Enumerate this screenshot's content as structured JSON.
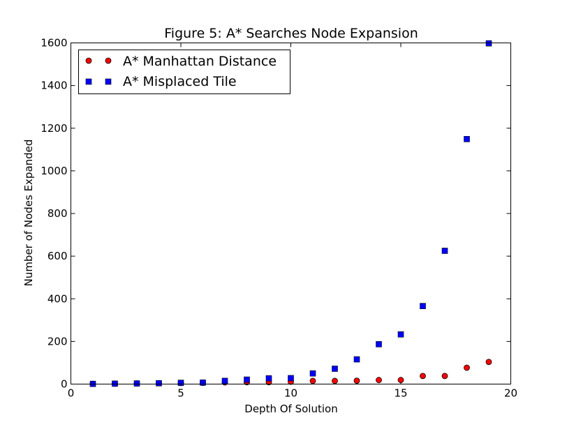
{
  "chart_data": {
    "type": "scatter",
    "title": "Figure 5: A* Searches Node Expansion",
    "xlabel": "Depth Of Solution",
    "ylabel": "Number of Nodes Expanded",
    "xlim": [
      0,
      20
    ],
    "ylim": [
      0,
      1600
    ],
    "xticks": [
      0,
      5,
      10,
      15,
      20
    ],
    "yticks": [
      0,
      200,
      400,
      600,
      800,
      1000,
      1200,
      1400,
      1600
    ],
    "grid": false,
    "legend_position": "top-left",
    "series": [
      {
        "name": "A* Manhattan Distance",
        "marker": "circle",
        "color": "#ff0000",
        "x": [
          1,
          2,
          3,
          4,
          5,
          6,
          7,
          8,
          9,
          10,
          11,
          12,
          13,
          14,
          15,
          16,
          17,
          18,
          19
        ],
        "y": [
          1,
          2,
          3,
          4,
          5,
          6,
          8,
          9,
          9,
          11,
          15,
          15,
          16,
          19,
          19,
          38,
          38,
          77,
          104
        ]
      },
      {
        "name": "A* Misplaced Tile",
        "marker": "square",
        "color": "#0000ff",
        "x": [
          1,
          2,
          3,
          4,
          5,
          6,
          7,
          8,
          9,
          10,
          11,
          12,
          13,
          14,
          15,
          16,
          17,
          18,
          19
        ],
        "y": [
          1,
          2,
          3,
          4,
          6,
          7,
          15,
          21,
          27,
          28,
          50,
          72,
          116,
          187,
          233,
          366,
          625,
          1149,
          1598
        ]
      }
    ]
  }
}
